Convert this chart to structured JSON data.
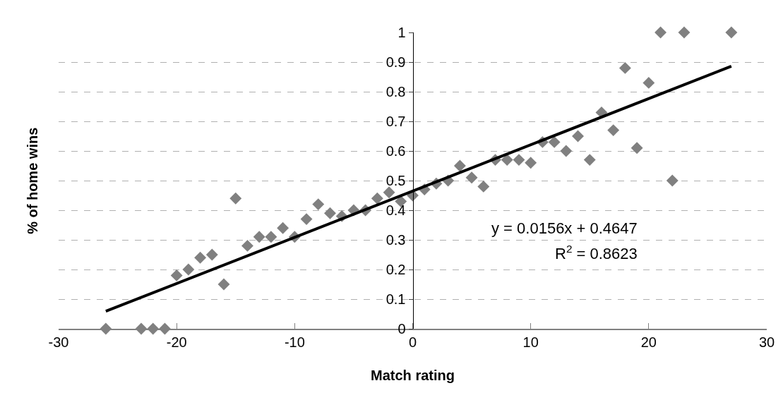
{
  "chart_data": {
    "type": "scatter",
    "xlabel": "Match rating",
    "ylabel": "% of home wins",
    "xlim": [
      -30,
      30
    ],
    "xticks": [
      -30,
      -20,
      -10,
      0,
      10,
      20,
      30
    ],
    "ylim": [
      0,
      1
    ],
    "yticks": [
      0,
      0.1,
      0.2,
      0.3,
      0.4,
      0.5,
      0.6,
      0.7,
      0.8,
      0.9,
      1
    ],
    "grid": "y",
    "marker": "diamond",
    "series": [
      {
        "color": "#808080",
        "x": [
          -26,
          -23,
          -22,
          -21,
          -20,
          -19,
          -18,
          -17,
          -16,
          -15,
          -14,
          -13,
          -12,
          -11,
          -10,
          -9,
          -8,
          -7,
          -6,
          -5,
          -4,
          -3,
          -2,
          -1,
          0,
          1,
          2,
          3,
          4,
          5,
          6,
          7,
          8,
          9,
          10,
          11,
          12,
          13,
          14,
          15,
          16,
          17,
          18,
          19,
          20,
          21,
          22,
          23,
          27
        ],
        "values": [
          0,
          0,
          0,
          0,
          0.18,
          0.2,
          0.24,
          0.25,
          0.15,
          0.44,
          0.28,
          0.31,
          0.31,
          0.34,
          0.31,
          0.37,
          0.42,
          0.39,
          0.38,
          0.4,
          0.4,
          0.44,
          0.46,
          0.43,
          0.45,
          0.47,
          0.49,
          0.5,
          0.55,
          0.51,
          0.48,
          0.57,
          0.57,
          0.57,
          0.56,
          0.63,
          0.63,
          0.6,
          0.65,
          0.57,
          0.73,
          0.67,
          0.88,
          0.61,
          0.83,
          1,
          0.5,
          1,
          1
        ]
      },
      {
        "type": "line",
        "marker": "none",
        "color": "#000000",
        "x": [
          -26,
          27
        ],
        "values": [
          0.059,
          0.886
        ]
      }
    ],
    "annotations": [
      "y = 0.0156x + 0.4647",
      "R$^{2}$ = 0.8623"
    ]
  }
}
